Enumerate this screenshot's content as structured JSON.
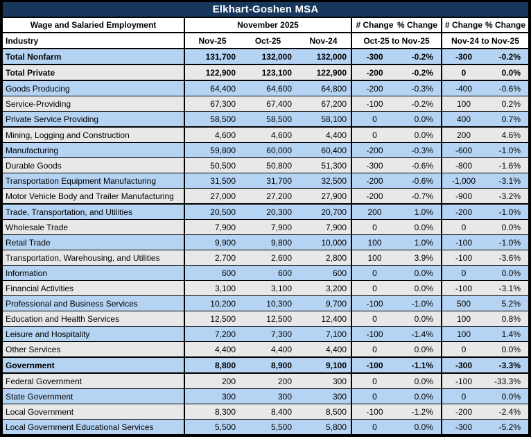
{
  "title": "Elkhart-Goshen MSA",
  "header": {
    "col1": "Wage and Salaried Employment",
    "month_group": "November 2025",
    "num_change_1": "# Change",
    "pct_change_1": "% Change",
    "num_change_2": "# Change",
    "pct_change_2": "% Change",
    "industry": "Industry",
    "month_1": "Nov-25",
    "month_2": "Oct-25",
    "month_3": "Nov-24",
    "period_1": "Oct-25 to Nov-25",
    "period_2": "Nov-24 to Nov-25"
  },
  "colors": {
    "title_navy": "#17375D",
    "row_blue": "#B5D3F2",
    "row_gray": "#E8E8E8",
    "border_black": "#000000",
    "title_text": "#FFFFFF"
  },
  "chart_data": {
    "type": "table",
    "title": "Elkhart-Goshen MSA",
    "columns": [
      "Industry",
      "Nov-25",
      "Oct-25",
      "Nov-24",
      "# Change Oct-25 to Nov-25",
      "% Change Oct-25 to Nov-25",
      "# Change Nov-24 to Nov-25",
      "% Change Nov-24 to Nov-25"
    ],
    "rows": [
      {
        "industry": "Total Nonfarm",
        "nov25": "131,700",
        "oct25": "132,000",
        "nov24": "132,000",
        "chg1": "-300",
        "pct1": "-0.2%",
        "chg2": "-300",
        "pct2": "-0.2%",
        "shade": "blue",
        "bold": true,
        "thick_bottom": true
      },
      {
        "industry": "Total Private",
        "nov25": "122,900",
        "oct25": "123,100",
        "nov24": "122,900",
        "chg1": "-200",
        "pct1": "-0.2%",
        "chg2": "0",
        "pct2": "0.0%",
        "shade": "gray",
        "bold": true,
        "thick_bottom": true
      },
      {
        "industry": "Goods Producing",
        "nov25": "64,400",
        "oct25": "64,600",
        "nov24": "64,800",
        "chg1": "-200",
        "pct1": "-0.3%",
        "chg2": "-400",
        "pct2": "-0.6%",
        "shade": "blue",
        "bold": false,
        "thick_bottom": false
      },
      {
        "industry": "Service-Providing",
        "nov25": "67,300",
        "oct25": "67,400",
        "nov24": "67,200",
        "chg1": "-100",
        "pct1": "-0.2%",
        "chg2": "100",
        "pct2": "0.2%",
        "shade": "gray",
        "bold": false,
        "thick_bottom": false
      },
      {
        "industry": "Private Service Providing",
        "nov25": "58,500",
        "oct25": "58,500",
        "nov24": "58,100",
        "chg1": "0",
        "pct1": "0.0%",
        "chg2": "400",
        "pct2": "0.7%",
        "shade": "blue",
        "bold": false,
        "thick_bottom": true
      },
      {
        "industry": "Mining, Logging and Construction",
        "nov25": "4,600",
        "oct25": "4,600",
        "nov24": "4,400",
        "chg1": "0",
        "pct1": "0.0%",
        "chg2": "200",
        "pct2": "4.6%",
        "shade": "gray",
        "bold": false,
        "thick_bottom": false
      },
      {
        "industry": "Manufacturing",
        "nov25": "59,800",
        "oct25": "60,000",
        "nov24": "60,400",
        "chg1": "-200",
        "pct1": "-0.3%",
        "chg2": "-600",
        "pct2": "-1.0%",
        "shade": "blue",
        "bold": false,
        "thick_bottom": false
      },
      {
        "industry": "Durable Goods",
        "nov25": "50,500",
        "oct25": "50,800",
        "nov24": "51,300",
        "chg1": "-300",
        "pct1": "-0.6%",
        "chg2": "-800",
        "pct2": "-1.6%",
        "shade": "gray",
        "bold": false,
        "thick_bottom": false
      },
      {
        "industry": "Transportation Equipment Manufacturing",
        "nov25": "31,500",
        "oct25": "31,700",
        "nov24": "32,500",
        "chg1": "-200",
        "pct1": "-0.6%",
        "chg2": "-1,000",
        "pct2": "-3.1%",
        "shade": "blue",
        "bold": false,
        "thick_bottom": false
      },
      {
        "industry": "Motor Vehicle Body and Trailer Manufacturing",
        "nov25": "27,000",
        "oct25": "27,200",
        "nov24": "27,900",
        "chg1": "-200",
        "pct1": "-0.7%",
        "chg2": "-900",
        "pct2": "-3.2%",
        "shade": "gray",
        "bold": false,
        "thick_bottom": true
      },
      {
        "industry": "Trade, Transportation, and Utilities",
        "nov25": "20,500",
        "oct25": "20,300",
        "nov24": "20,700",
        "chg1": "200",
        "pct1": "1.0%",
        "chg2": "-200",
        "pct2": "-1.0%",
        "shade": "blue",
        "bold": false,
        "thick_bottom": false
      },
      {
        "industry": "Wholesale Trade",
        "nov25": "7,900",
        "oct25": "7,900",
        "nov24": "7,900",
        "chg1": "0",
        "pct1": "0.0%",
        "chg2": "0",
        "pct2": "0.0%",
        "shade": "gray",
        "bold": false,
        "thick_bottom": false
      },
      {
        "industry": "Retail Trade",
        "nov25": "9,900",
        "oct25": "9,800",
        "nov24": "10,000",
        "chg1": "100",
        "pct1": "1.0%",
        "chg2": "-100",
        "pct2": "-1.0%",
        "shade": "blue",
        "bold": false,
        "thick_bottom": false
      },
      {
        "industry": "Transportation, Warehousing, and Utilities",
        "nov25": "2,700",
        "oct25": "2,600",
        "nov24": "2,800",
        "chg1": "100",
        "pct1": "3.9%",
        "chg2": "-100",
        "pct2": "-3.6%",
        "shade": "gray",
        "bold": false,
        "thick_bottom": false
      },
      {
        "industry": "Information",
        "nov25": "600",
        "oct25": "600",
        "nov24": "600",
        "chg1": "0",
        "pct1": "0.0%",
        "chg2": "0",
        "pct2": "0.0%",
        "shade": "blue",
        "bold": false,
        "thick_bottom": false
      },
      {
        "industry": "Financial Activities",
        "nov25": "3,100",
        "oct25": "3,100",
        "nov24": "3,200",
        "chg1": "0",
        "pct1": "0.0%",
        "chg2": "-100",
        "pct2": "-3.1%",
        "shade": "gray",
        "bold": false,
        "thick_bottom": false
      },
      {
        "industry": "Professional and Business Services",
        "nov25": "10,200",
        "oct25": "10,300",
        "nov24": "9,700",
        "chg1": "-100",
        "pct1": "-1.0%",
        "chg2": "500",
        "pct2": "5.2%",
        "shade": "blue",
        "bold": false,
        "thick_bottom": false
      },
      {
        "industry": "Education and Health Services",
        "nov25": "12,500",
        "oct25": "12,500",
        "nov24": "12,400",
        "chg1": "0",
        "pct1": "0.0%",
        "chg2": "100",
        "pct2": "0.8%",
        "shade": "gray",
        "bold": false,
        "thick_bottom": false
      },
      {
        "industry": "Leisure and Hospitality",
        "nov25": "7,200",
        "oct25": "7,300",
        "nov24": "7,100",
        "chg1": "-100",
        "pct1": "-1.4%",
        "chg2": "100",
        "pct2": "1.4%",
        "shade": "blue",
        "bold": false,
        "thick_bottom": false
      },
      {
        "industry": "Other Services",
        "nov25": "4,400",
        "oct25": "4,400",
        "nov24": "4,400",
        "chg1": "0",
        "pct1": "0.0%",
        "chg2": "0",
        "pct2": "0.0%",
        "shade": "gray",
        "bold": false,
        "thick_bottom": true
      },
      {
        "industry": "Government",
        "nov25": "8,800",
        "oct25": "8,900",
        "nov24": "9,100",
        "chg1": "-100",
        "pct1": "-1.1%",
        "chg2": "-300",
        "pct2": "-3.3%",
        "shade": "blue",
        "bold": true,
        "thick_bottom": true
      },
      {
        "industry": "Federal Government",
        "nov25": "200",
        "oct25": "200",
        "nov24": "300",
        "chg1": "0",
        "pct1": "0.0%",
        "chg2": "-100",
        "pct2": "-33.3%",
        "shade": "gray",
        "bold": false,
        "thick_bottom": false
      },
      {
        "industry": "State Government",
        "nov25": "300",
        "oct25": "300",
        "nov24": "300",
        "chg1": "0",
        "pct1": "0.0%",
        "chg2": "0",
        "pct2": "0.0%",
        "shade": "blue",
        "bold": false,
        "thick_bottom": false
      },
      {
        "industry": "Local Government",
        "nov25": "8,300",
        "oct25": "8,400",
        "nov24": "8,500",
        "chg1": "-100",
        "pct1": "-1.2%",
        "chg2": "-200",
        "pct2": "-2.4%",
        "shade": "gray",
        "bold": false,
        "thick_bottom": false
      },
      {
        "industry": "Local Government Educational Services",
        "nov25": "5,500",
        "oct25": "5,500",
        "nov24": "5,800",
        "chg1": "0",
        "pct1": "0.0%",
        "chg2": "-300",
        "pct2": "-5.2%",
        "shade": "blue",
        "bold": false,
        "thick_bottom": false
      }
    ]
  }
}
